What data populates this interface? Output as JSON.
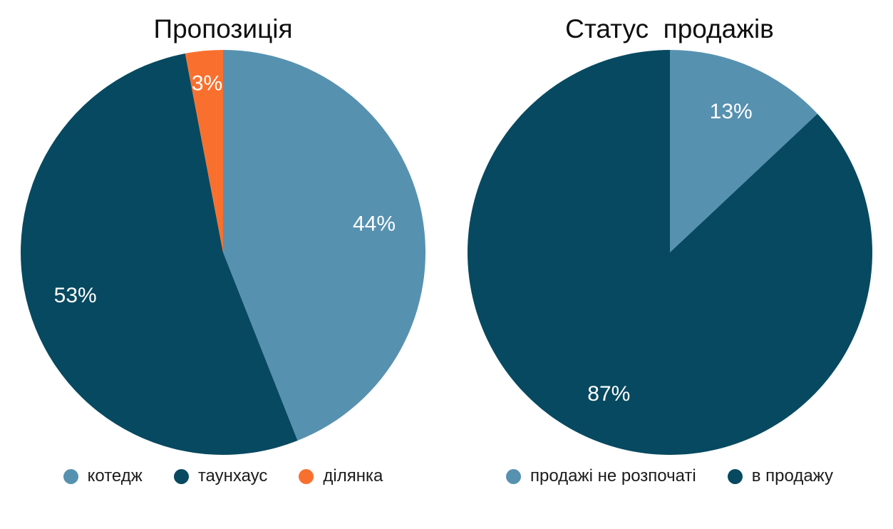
{
  "page": {
    "background": "#ffffff",
    "text_color": "#0f0f0f",
    "label_text_color": "#ffffff"
  },
  "chart_data": [
    {
      "type": "pie",
      "title": "Пропозиція",
      "start_angle_deg": 0,
      "direction": "clockwise",
      "legend_position": "bottom",
      "slices": [
        {
          "label": "котедж",
          "value": 44,
          "display": "44%",
          "color": "#5791b0"
        },
        {
          "label": "таунхаус",
          "value": 53,
          "display": "53%",
          "color": "#074960"
        },
        {
          "label": "ділянка",
          "value": 3,
          "display": "3%",
          "color": "#f9702e"
        }
      ]
    },
    {
      "type": "pie",
      "title": "Статус  продажів",
      "start_angle_deg": 0,
      "direction": "clockwise",
      "legend_position": "bottom",
      "slices": [
        {
          "label": "продажі не розпочаті",
          "value": 13,
          "display": "13%",
          "color": "#5791b0"
        },
        {
          "label": "в продажу",
          "value": 87,
          "display": "87%",
          "color": "#074960"
        }
      ]
    }
  ]
}
